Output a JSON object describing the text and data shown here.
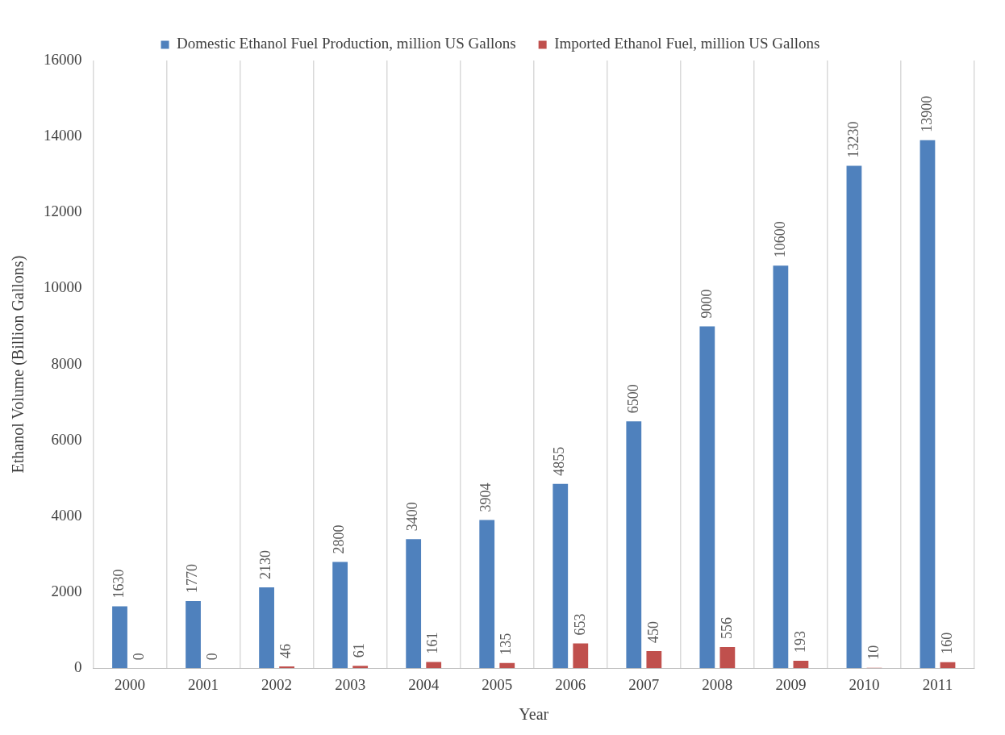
{
  "chart_data": {
    "type": "bar",
    "xlabel": "Year",
    "ylabel": "Ethanol Volume (Billion Gallons)",
    "categories": [
      "2000",
      "2001",
      "2002",
      "2003",
      "2004",
      "2005",
      "2006",
      "2007",
      "2008",
      "2009",
      "2010",
      "2011"
    ],
    "series": [
      {
        "name": "Domestic Ethanol Fuel Production, million US Gallons",
        "color": "#4f81bd",
        "values": [
          1630,
          1770,
          2130,
          2800,
          3400,
          3904,
          4855,
          6500,
          9000,
          10600,
          13230,
          13900
        ]
      },
      {
        "name": "Imported Ethanol Fuel, million US Gallons",
        "color": "#c0504d",
        "values": [
          0,
          0,
          46,
          61,
          161,
          135,
          653,
          450,
          556,
          193,
          10,
          160
        ]
      }
    ],
    "ylim": [
      0,
      16000
    ],
    "yticks": [
      0,
      2000,
      4000,
      6000,
      8000,
      10000,
      12000,
      14000,
      16000
    ],
    "grid": "x",
    "legend": "top",
    "data_labels": true
  }
}
